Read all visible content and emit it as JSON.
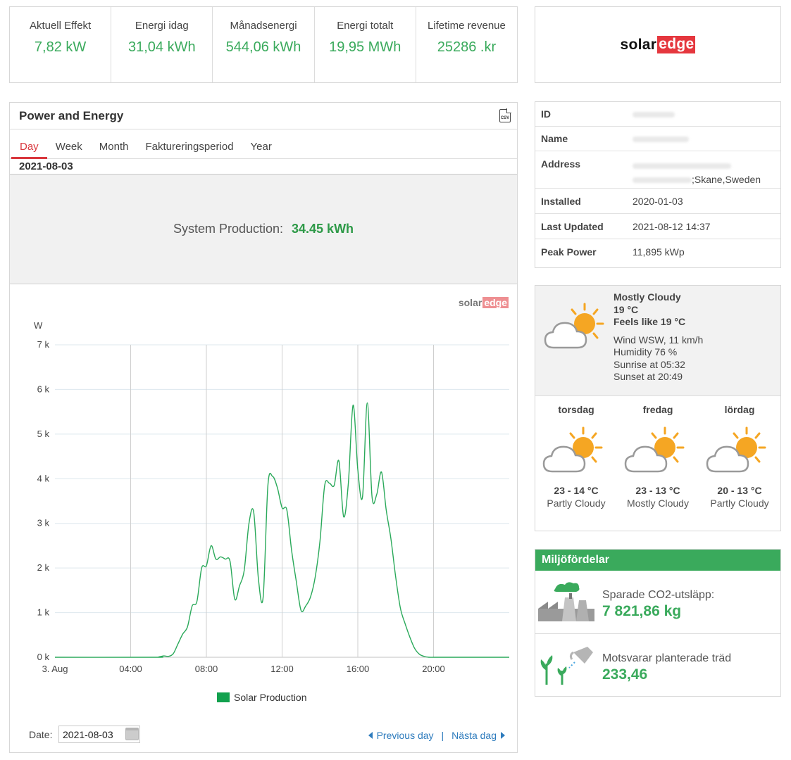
{
  "kpis": [
    {
      "label": "Aktuell Effekt",
      "value": "7,82 kW"
    },
    {
      "label": "Energi idag",
      "value": "31,04 kWh"
    },
    {
      "label": "Månadsenergi",
      "value": "544,06 kWh"
    },
    {
      "label": "Energi totalt",
      "value": "19,95 MWh"
    },
    {
      "label": "Lifetime revenue",
      "value": "25286 .kr"
    }
  ],
  "logo": {
    "part1": "solar",
    "part2": "edge"
  },
  "power_energy": {
    "title": "Power and Energy",
    "csv_icon_text": "CSV",
    "tabs": [
      "Day",
      "Week",
      "Month",
      "Faktureringsperiod",
      "Year"
    ],
    "active_tab": "Day",
    "date": "2021-08-03",
    "system_production_label": "System Production:",
    "system_production_value": "34.45 kWh",
    "date_label": "Date:",
    "date_input_value": "2021-08-03",
    "prev_label": "Previous day",
    "separator": "|",
    "next_label": "Nästa dag"
  },
  "chart_data": {
    "type": "line",
    "ylabel": "W",
    "ylim": [
      0,
      7000
    ],
    "yticks": [
      0,
      1000,
      2000,
      3000,
      4000,
      5000,
      6000,
      7000
    ],
    "ytick_labels": [
      "0 k",
      "1 k",
      "2 k",
      "3 k",
      "4 k",
      "5 k",
      "6 k",
      "7 k"
    ],
    "xlim_hours": [
      0,
      24
    ],
    "xticks": [
      0,
      4,
      8,
      12,
      16,
      20
    ],
    "xtick_labels": [
      "3. Aug",
      "04:00",
      "08:00",
      "12:00",
      "16:00",
      "20:00"
    ],
    "legend_position": "bottom-center",
    "series": [
      {
        "name": "Solar Production",
        "color": "#2aa95a",
        "x_hours": [
          0,
          5.25,
          5.5,
          5.75,
          6.0,
          6.25,
          6.5,
          6.75,
          7.0,
          7.25,
          7.5,
          7.75,
          8.0,
          8.25,
          8.5,
          8.75,
          9.0,
          9.25,
          9.5,
          9.75,
          10.0,
          10.25,
          10.5,
          10.75,
          11.0,
          11.25,
          11.5,
          11.75,
          12.0,
          12.25,
          12.5,
          12.75,
          13.0,
          13.25,
          13.5,
          13.75,
          14.0,
          14.25,
          14.5,
          14.75,
          15.0,
          15.25,
          15.5,
          15.75,
          16.0,
          16.25,
          16.5,
          16.75,
          17.0,
          17.25,
          17.5,
          17.75,
          18.0,
          18.25,
          18.5,
          18.75,
          19.0,
          19.25,
          19.5,
          19.75,
          20.0,
          20.25,
          20.5,
          20.75,
          21.0,
          21.25,
          24
        ],
        "y_w": [
          0,
          0,
          10,
          30,
          20,
          80,
          300,
          520,
          680,
          1150,
          1250,
          2000,
          2050,
          2500,
          2200,
          2250,
          2200,
          2150,
          1300,
          1600,
          1950,
          3000,
          3250,
          1750,
          1350,
          3850,
          4050,
          3800,
          3350,
          3300,
          2400,
          1700,
          1050,
          1150,
          1350,
          1800,
          2600,
          3850,
          3900,
          3850,
          4400,
          3150,
          3900,
          5650,
          4200,
          3600,
          5700,
          3600,
          3650,
          4150,
          3300,
          2650,
          1800,
          1100,
          750,
          450,
          200,
          70,
          20,
          0,
          0,
          0,
          0,
          0,
          0,
          0,
          0
        ]
      }
    ]
  },
  "chart_logo": {
    "part1": "solar",
    "part2": "edge"
  },
  "site_info": [
    {
      "key": "ID",
      "value": ""
    },
    {
      "key": "Name",
      "value": ""
    },
    {
      "key": "Address",
      "value": ";Skane,Sweden"
    },
    {
      "key": "Installed",
      "value": "2020-01-03"
    },
    {
      "key": "Last Updated",
      "value": "2021-08-12 14:37"
    },
    {
      "key": "Peak Power",
      "value": "11,895 kWp"
    }
  ],
  "weather": {
    "condition": "Mostly Cloudy",
    "temp": "19 °C",
    "feels_like": "Feels like 19 °C",
    "wind": "Wind WSW, 11 km/h",
    "humidity": "Humidity 76 %",
    "sunrise": "Sunrise at 05:32",
    "sunset": "Sunset at 20:49",
    "icon": "partly-cloudy-sun-icon",
    "forecast": [
      {
        "day": "torsdag",
        "temp": "23 - 14 °C",
        "desc": "Partly Cloudy"
      },
      {
        "day": "fredag",
        "temp": "23 - 13 °C",
        "desc": "Mostly Cloudy"
      },
      {
        "day": "lördag",
        "temp": "20 - 13 °C",
        "desc": "Partly Cloudy"
      }
    ]
  },
  "environment": {
    "title": "Miljöfördelar",
    "co2_label": "Sparade CO2-utsläpp:",
    "co2_value": "7 821,86 kg",
    "trees_label": "Motsvarar planterade träd",
    "trees_value": "233,46"
  },
  "colors": {
    "accent_green": "#3aaa5c",
    "tab_red": "#d9373d",
    "link_blue": "#2d7bbd"
  }
}
